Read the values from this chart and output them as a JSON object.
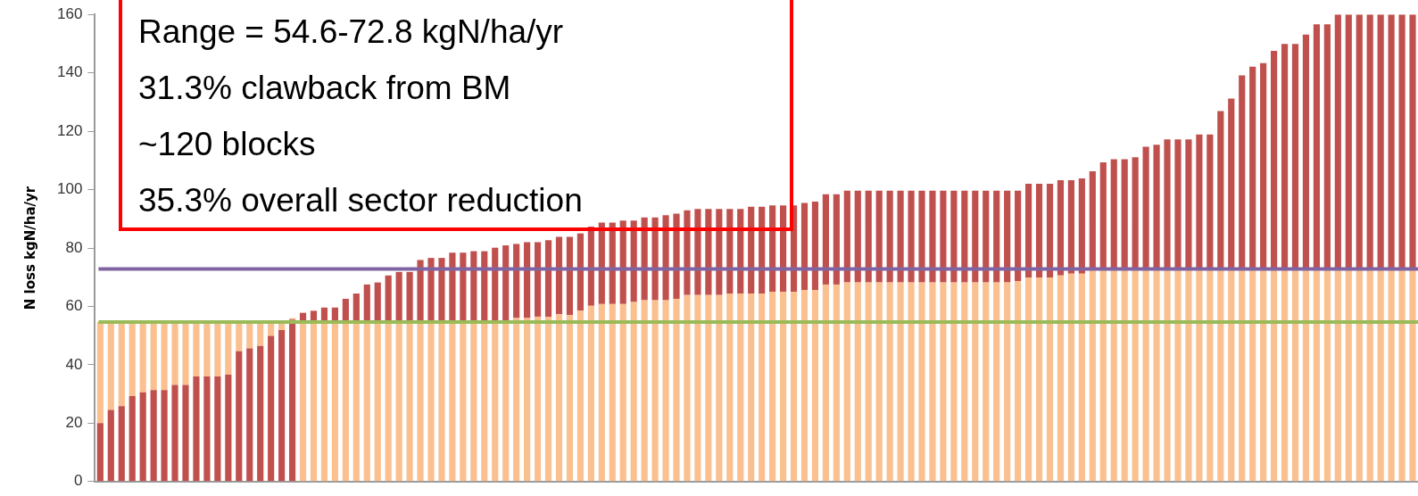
{
  "chart_data": {
    "type": "bar",
    "ylabel": "N loss kgN/ha/yr",
    "categories": [
      null,
      null,
      null,
      null,
      null,
      null,
      null,
      null,
      null,
      null,
      null,
      null,
      null,
      null,
      null,
      null,
      null,
      null,
      null,
      null,
      null,
      null,
      null,
      null,
      null,
      null,
      null,
      null,
      null,
      null,
      null,
      null,
      null,
      null,
      null,
      null,
      null,
      null,
      null,
      null,
      null,
      null,
      null,
      null,
      null,
      null,
      null,
      null,
      null,
      null,
      null,
      null,
      null,
      null,
      null,
      null,
      null,
      null,
      null,
      null,
      null,
      null,
      null,
      null,
      null,
      null,
      null,
      null,
      null,
      null,
      null,
      null,
      null,
      null,
      null,
      null,
      null,
      null,
      null,
      null,
      null,
      null,
      null,
      null,
      null,
      null,
      null,
      null,
      null,
      null,
      null,
      null,
      null,
      null,
      null,
      null,
      null,
      null,
      null,
      null,
      null,
      null,
      null,
      null,
      null,
      null,
      null,
      null,
      null,
      null,
      null,
      null,
      null,
      null,
      null,
      null,
      null,
      null,
      null,
      null,
      null,
      null,
      null,
      null
    ],
    "stacked": true,
    "series": [
      {
        "color": "#c0504d",
        "values": [
          20,
          24.5,
          25.8,
          29.3,
          30.6,
          31.3,
          31.3,
          33.1,
          33.1,
          36,
          36,
          36,
          36.6,
          44.6,
          45.6,
          46.5,
          49.9,
          51.9,
          55.5,
          null,
          null,
          null,
          null,
          null,
          null,
          null,
          null,
          null,
          null,
          null,
          null,
          null,
          null,
          null,
          null,
          null,
          null,
          null,
          null,
          null,
          null,
          null,
          null,
          null,
          null,
          null,
          null,
          null,
          null,
          null,
          null,
          null,
          null,
          null,
          null,
          null,
          null,
          null,
          null,
          null,
          null,
          null,
          null,
          null,
          null,
          null,
          null,
          null,
          null,
          null,
          null,
          null,
          null,
          null,
          null,
          null,
          null,
          null,
          null,
          null,
          null,
          null,
          null,
          null,
          null,
          null,
          null,
          null,
          null,
          null,
          null,
          null,
          null,
          null,
          null,
          null,
          null,
          null,
          null,
          null,
          null,
          null,
          null,
          null,
          null,
          null,
          null,
          null,
          null,
          null,
          null,
          null,
          null,
          null,
          null,
          null,
          null,
          null,
          null,
          null,
          null,
          null,
          null,
          null
        ]
      },
      {
        "color": "#fac090",
        "values": [
          null,
          null,
          null,
          null,
          null,
          null,
          null,
          null,
          null,
          null,
          null,
          null,
          null,
          null,
          null,
          null,
          null,
          null,
          null,
          54.6,
          54.6,
          54.6,
          54.6,
          54.6,
          54.6,
          54.6,
          54.6,
          54.6,
          54.6,
          54.6,
          54.6,
          54.6,
          54.6,
          54.6,
          54.6,
          54.6,
          54.6,
          54.6,
          54.6,
          56,
          56,
          56.5,
          56.5,
          57.3,
          57,
          58.5,
          60.2,
          60.8,
          60.8,
          60.8,
          61.5,
          62.1,
          62.1,
          62.1,
          62.6,
          63.9,
          63.9,
          63.9,
          63.9,
          64.4,
          64.4,
          64.4,
          64.4,
          65,
          65,
          65,
          65.6,
          65.6,
          67.5,
          67.5,
          68.2,
          68.2,
          68.2,
          68.2,
          68.2,
          68.2,
          68.2,
          68.2,
          68.2,
          68.2,
          68.2,
          68.2,
          68.2,
          68.2,
          68.2,
          68.2,
          68.7,
          69.9,
          69.9,
          69.9,
          70.6,
          71.2,
          71.2,
          72.8,
          72.8,
          72.8,
          72.8,
          72.8,
          72.8,
          72.8,
          72.8,
          72.8,
          72.8,
          72.8,
          72.8,
          72.8,
          72.8,
          72.8,
          72.8,
          72.8,
          72.8,
          72.8,
          72.8,
          72.8,
          72.8,
          72.8,
          72.8,
          72.8,
          72.8,
          72.8,
          72.8,
          72.8,
          72.8,
          72.8
        ]
      },
      {
        "color": "#fac090",
        "values": [
          34.6,
          30.1,
          28.8,
          25.3,
          24,
          23.3,
          23.3,
          21.5,
          21.5,
          18.6,
          18.6,
          18.6,
          18,
          10,
          9,
          8.1,
          4.7,
          2.7,
          0.5,
          null,
          null,
          null,
          null,
          null,
          null,
          null,
          null,
          null,
          null,
          null,
          null,
          null,
          null,
          null,
          null,
          null,
          null,
          null,
          null,
          null,
          null,
          null,
          null,
          null,
          null,
          null,
          null,
          null,
          null,
          null,
          null,
          null,
          null,
          null,
          null,
          null,
          null,
          null,
          null,
          null,
          null,
          null,
          null,
          null,
          null,
          null,
          null,
          null,
          null,
          null,
          null,
          null,
          null,
          null,
          null,
          null,
          null,
          null,
          null,
          null,
          null,
          null,
          null,
          null,
          null,
          null,
          null,
          null,
          null,
          null,
          null,
          null,
          null,
          null,
          null,
          null,
          null,
          null,
          null,
          null,
          null,
          null,
          null,
          null,
          null,
          null,
          null,
          null,
          null,
          null,
          null,
          null,
          null,
          null,
          null,
          null,
          null,
          null,
          null,
          null,
          null,
          null,
          null,
          null
        ]
      },
      {
        "color": "#c0504d",
        "values": [
          null,
          null,
          null,
          null,
          null,
          null,
          null,
          null,
          null,
          null,
          null,
          null,
          null,
          null,
          null,
          null,
          null,
          null,
          null,
          3.2,
          3.9,
          5,
          5,
          8,
          9.8,
          12.9,
          13.6,
          16,
          17.2,
          17.2,
          21.3,
          22,
          22,
          23.8,
          23.8,
          24.3,
          24.3,
          25.5,
          26.3,
          25.4,
          26,
          25.5,
          26.2,
          26.5,
          26.8,
          26.5,
          27.1,
          27.9,
          27.9,
          28.6,
          27.9,
          28.4,
          28.4,
          29.1,
          29.2,
          29,
          29.5,
          29.5,
          29.5,
          29,
          29,
          29.7,
          29.7,
          29.6,
          29.6,
          29.6,
          29.8,
          30.3,
          30.9,
          30.9,
          31.4,
          31.4,
          31.4,
          31.4,
          31.4,
          31.4,
          31.4,
          31.4,
          31.4,
          31.4,
          31.4,
          31.4,
          31.4,
          31.4,
          31.4,
          31.4,
          30.9,
          32.1,
          32.1,
          32.1,
          32.6,
          32,
          32.6,
          33.5,
          36.5,
          37.6,
          37.6,
          38.3,
          41.9,
          42.6,
          44.4,
          44.4,
          44.4,
          46.1,
          46.1,
          54.1,
          58.4,
          66.3,
          69.3,
          70.5,
          74.7,
          77.1,
          77.1,
          80.3,
          83.8,
          83.8,
          87.2,
          87.2,
          87.2,
          87.2,
          87.2,
          87.2,
          87.2,
          87.2
        ]
      }
    ],
    "ylim": [
      0,
      160
    ],
    "yticks": [
      0,
      20,
      40,
      60,
      80,
      100,
      120,
      140,
      160
    ],
    "grid": false,
    "legend": false,
    "tick_labels": "y",
    "ref_lines": [
      {
        "axis": "y",
        "value": 72.8,
        "color": "#8064a2"
      },
      {
        "axis": "y",
        "value": 54.6,
        "color": "#9bbb59"
      }
    ],
    "annotations": [
      "Range = 54.6-72.8 kgN/ha/yr",
      "31.3% clawback from BM",
      "~120 blocks",
      "35.3% overall sector reduction"
    ]
  }
}
